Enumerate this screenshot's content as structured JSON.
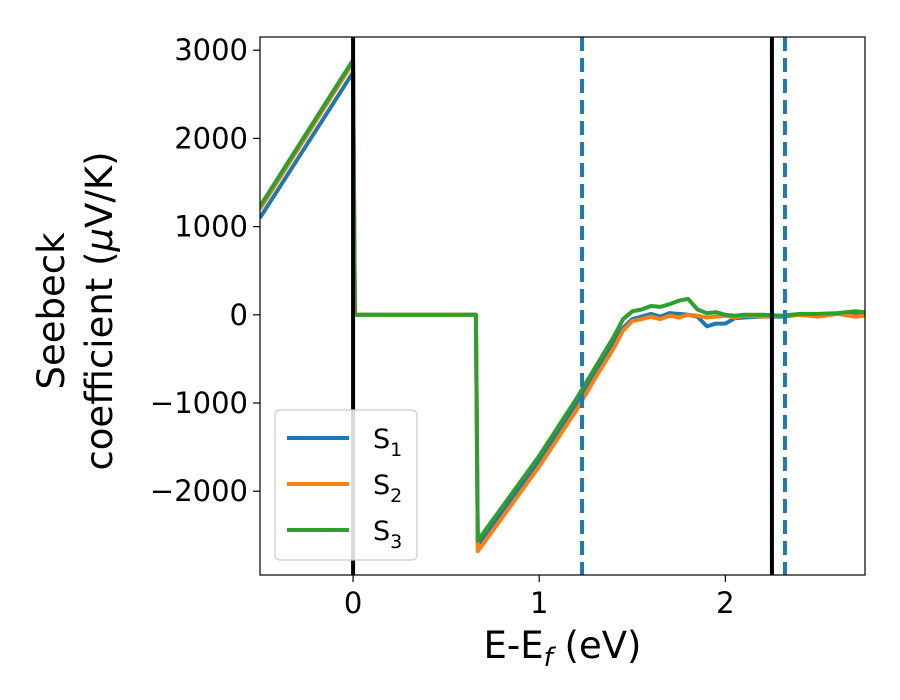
{
  "chart_data": {
    "type": "line",
    "title": "",
    "xlabel": "E-E",
    "xlabel_sub": "f",
    "xlabel_unit": " (eV)",
    "ylabel_line1": "Seebeck",
    "ylabel_line2": "coefficient  (",
    "ylabel_mu": "μ",
    "ylabel_unit": "V/K)",
    "xlim": [
      -0.5,
      2.75
    ],
    "ylim": [
      -2950,
      3150
    ],
    "xticks": [
      0,
      1,
      2
    ],
    "xtick_labels": [
      "0",
      "1",
      "2"
    ],
    "yticks": [
      3000,
      2000,
      1000,
      0,
      -1000,
      -2000
    ],
    "ytick_labels": [
      "3000",
      "2000",
      "1000",
      "0",
      "−1000",
      "−2000"
    ],
    "grid": false,
    "legend": {
      "position": "lower-left",
      "entries": [
        "S",
        "S",
        "S"
      ],
      "subscripts": [
        "1",
        "2",
        "3"
      ]
    },
    "vlines": [
      {
        "x": 0.0,
        "color": "#000000",
        "style": "solid"
      },
      {
        "x": 2.25,
        "color": "#000000",
        "style": "solid"
      },
      {
        "x": 1.23,
        "color": "#1f77b4",
        "style": "dashed"
      },
      {
        "x": 2.32,
        "color": "#1f77b4",
        "style": "dashed"
      }
    ],
    "series": [
      {
        "name": "S1",
        "color": "#1f77b4",
        "x": [
          -0.5,
          0.0,
          0.01,
          0.66,
          0.67,
          1.0,
          1.2,
          1.3,
          1.4,
          1.45,
          1.5,
          1.55,
          1.6,
          1.65,
          1.7,
          1.75,
          1.8,
          1.85,
          1.9,
          1.95,
          2.0,
          2.05,
          2.1,
          2.2,
          2.3,
          2.4,
          2.5,
          2.6,
          2.7,
          2.75
        ],
        "y": [
          1100,
          2750,
          0,
          0,
          -2620,
          -1650,
          -1000,
          -650,
          -320,
          -150,
          -50,
          -20,
          10,
          -20,
          20,
          10,
          0,
          -20,
          -130,
          -100,
          -100,
          -40,
          -30,
          -20,
          -20,
          0,
          -10,
          10,
          20,
          20
        ]
      },
      {
        "name": "S2",
        "color": "#ff7f0e",
        "x": [
          -0.5,
          0.0,
          0.01,
          0.66,
          0.67,
          1.0,
          1.2,
          1.3,
          1.4,
          1.45,
          1.5,
          1.55,
          1.6,
          1.65,
          1.7,
          1.75,
          1.8,
          1.85,
          1.9,
          1.95,
          2.0,
          2.05,
          2.1,
          2.2,
          2.3,
          2.4,
          2.5,
          2.6,
          2.7,
          2.75
        ],
        "y": [
          1200,
          2860,
          0,
          0,
          -2680,
          -1720,
          -1080,
          -720,
          -380,
          -180,
          -70,
          -50,
          -20,
          -50,
          -10,
          -30,
          0,
          -10,
          -30,
          -20,
          -10,
          -30,
          -10,
          -20,
          -10,
          0,
          -20,
          10,
          -20,
          -10
        ]
      },
      {
        "name": "S3",
        "color": "#2ca02c",
        "x": [
          -0.5,
          0.0,
          0.01,
          0.66,
          0.67,
          1.0,
          1.2,
          1.3,
          1.4,
          1.45,
          1.5,
          1.55,
          1.6,
          1.65,
          1.7,
          1.75,
          1.8,
          1.85,
          1.9,
          1.95,
          2.0,
          2.05,
          2.1,
          2.2,
          2.3,
          2.4,
          2.5,
          2.6,
          2.7,
          2.75
        ],
        "y": [
          1230,
          2890,
          0,
          0,
          -2560,
          -1600,
          -950,
          -600,
          -250,
          -50,
          40,
          60,
          100,
          90,
          120,
          160,
          180,
          60,
          20,
          30,
          0,
          -10,
          0,
          0,
          -10,
          10,
          10,
          20,
          40,
          30
        ]
      }
    ]
  }
}
